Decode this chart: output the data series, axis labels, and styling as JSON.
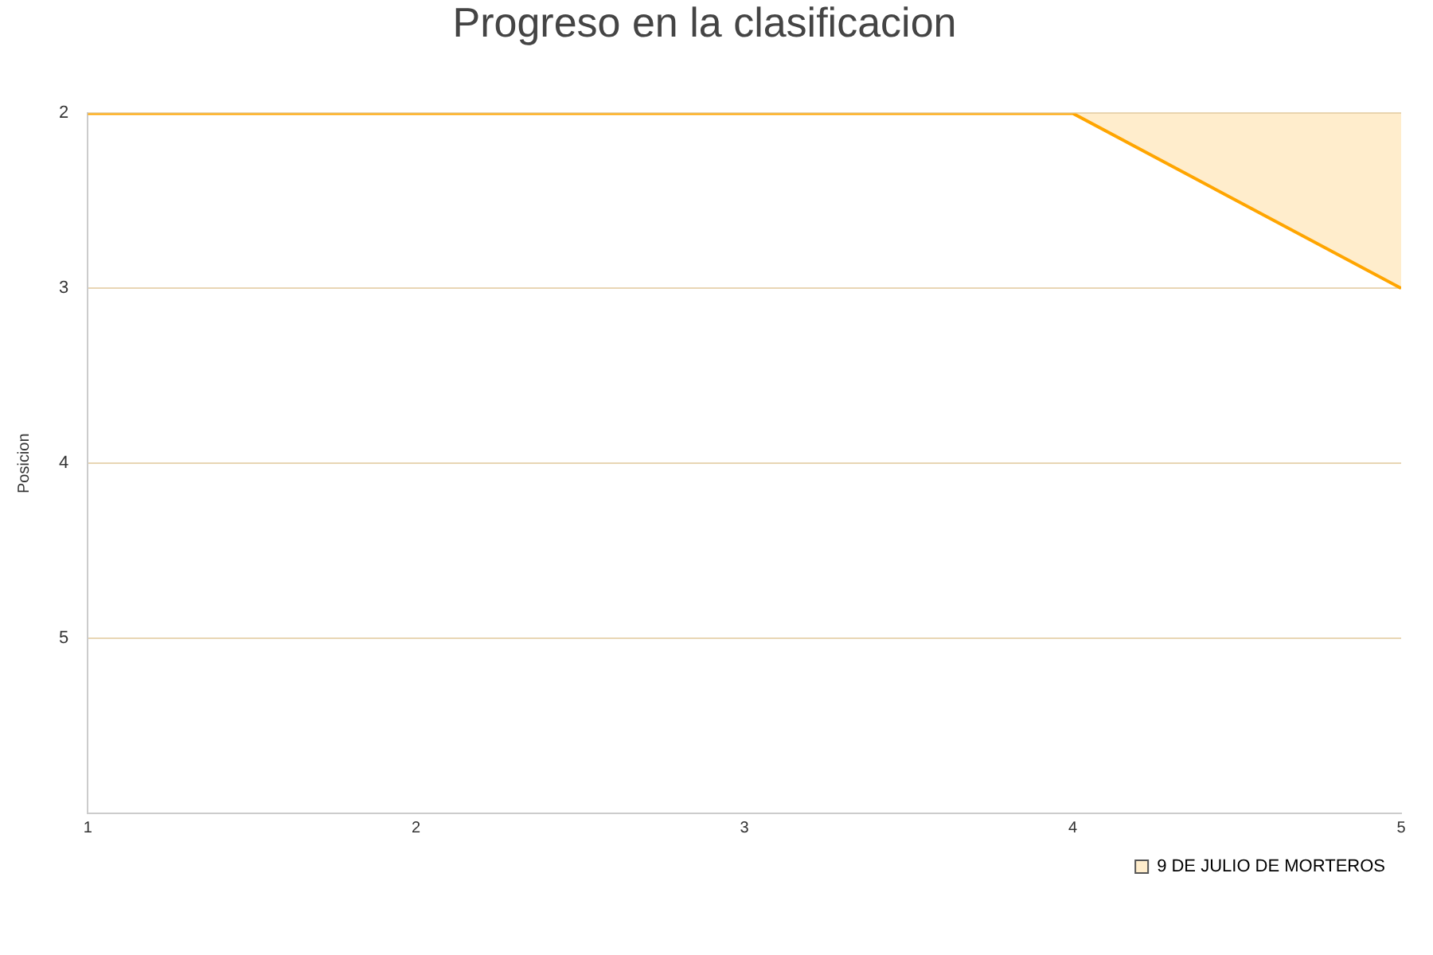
{
  "chart_data": {
    "type": "area",
    "title": "Progreso en la clasificacion",
    "ylabel": "Posicion",
    "x": [
      1,
      2,
      3,
      4,
      5
    ],
    "series": [
      {
        "name": "9 DE JULIO DE MORTEROS",
        "color": "#ffa500",
        "values": [
          2,
          2,
          2,
          2,
          3
        ]
      }
    ],
    "xlim": [
      1,
      5
    ],
    "xticks": [
      1,
      2,
      3,
      4,
      5
    ],
    "ylim": [
      6,
      2
    ],
    "yticks": [
      2,
      3,
      4,
      5
    ],
    "grid": "y",
    "legend": "bottom right",
    "marker": "none"
  }
}
